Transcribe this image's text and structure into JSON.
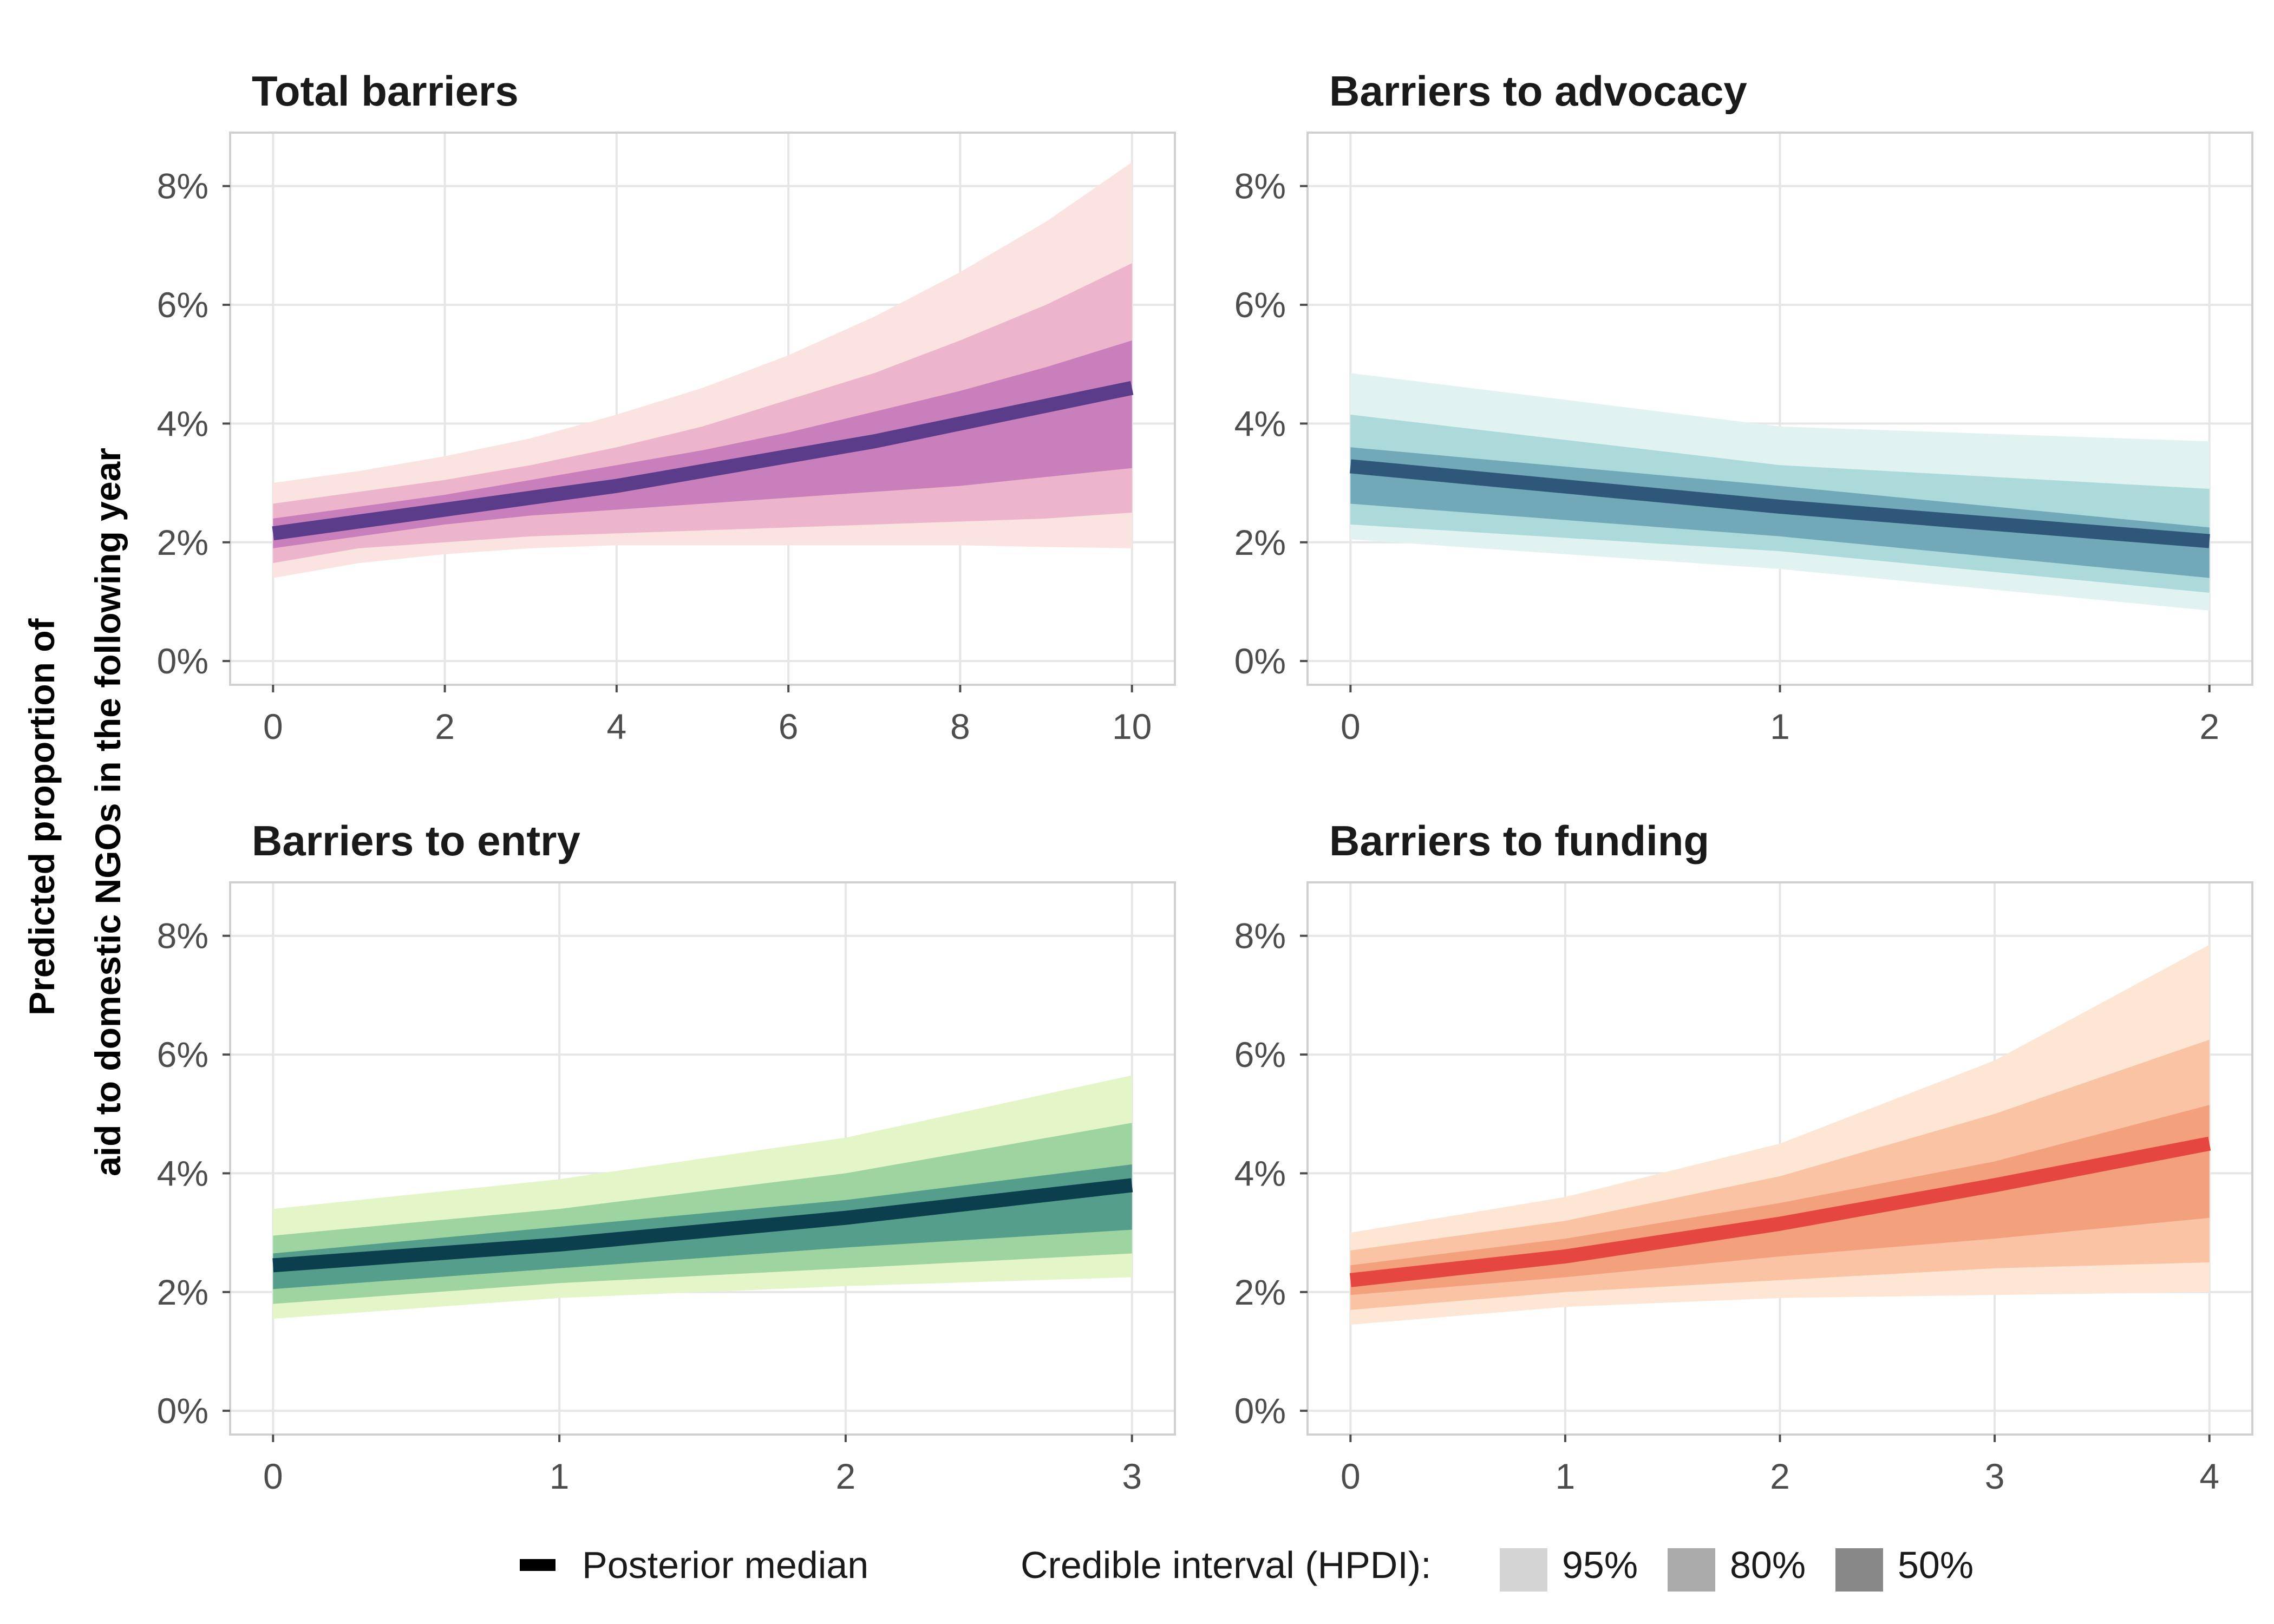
{
  "y_axis_title": [
    "Predicted proportion of",
    "aid to domestic NGOs in the following year"
  ],
  "legend": {
    "median_label": "Posterior median",
    "interval_label": "Credible interval (HPDI):",
    "levels": [
      "95%",
      "80%",
      "50%"
    ],
    "swatch_colors": [
      "#d4d4d4",
      "#ababab",
      "#888888"
    ],
    "median_color": "#000000"
  },
  "chart_data": [
    {
      "type": "line",
      "title": "Total barriers",
      "x": [
        0,
        1,
        2,
        3,
        4,
        5,
        6,
        7,
        8,
        9,
        10
      ],
      "x_ticks": [
        "0",
        "2",
        "4",
        "6",
        "8",
        "10"
      ],
      "x_tick_values": [
        0,
        2,
        4,
        6,
        8,
        10
      ],
      "xlim": [
        -0.5,
        10.5
      ],
      "y_ticks": [
        "0%",
        "2%",
        "4%",
        "6%",
        "8%"
      ],
      "y_tick_values": [
        0,
        2,
        4,
        6,
        8
      ],
      "ylim": [
        -0.4,
        8.9
      ],
      "grid": true,
      "colors": {
        "i95": "#fbe3e1",
        "i80": "#ecb5cb",
        "i50": "#c97fbb",
        "median": "#5a3c8a"
      },
      "median": [
        2.15,
        2.35,
        2.55,
        2.75,
        2.95,
        3.2,
        3.45,
        3.7,
        4.0,
        4.3,
        4.6
      ],
      "interval_95": {
        "lower": [
          1.4,
          1.65,
          1.8,
          1.9,
          1.95,
          1.95,
          1.95,
          1.95,
          1.95,
          1.92,
          1.9
        ],
        "upper": [
          3.0,
          3.2,
          3.45,
          3.75,
          4.15,
          4.6,
          5.15,
          5.8,
          6.55,
          7.4,
          8.4
        ]
      },
      "interval_80": {
        "lower": [
          1.65,
          1.9,
          2.0,
          2.1,
          2.15,
          2.2,
          2.25,
          2.3,
          2.35,
          2.4,
          2.5
        ],
        "upper": [
          2.65,
          2.85,
          3.05,
          3.3,
          3.6,
          3.95,
          4.4,
          4.85,
          5.4,
          6.0,
          6.7
        ]
      },
      "interval_50": {
        "lower": [
          1.9,
          2.1,
          2.3,
          2.45,
          2.55,
          2.65,
          2.75,
          2.85,
          2.95,
          3.1,
          3.25
        ],
        "upper": [
          2.4,
          2.6,
          2.8,
          3.05,
          3.3,
          3.55,
          3.85,
          4.2,
          4.55,
          4.95,
          5.4
        ]
      }
    },
    {
      "type": "line",
      "title": "Barriers to advocacy",
      "x": [
        0,
        1,
        2
      ],
      "x_ticks": [
        "0",
        "1",
        "2"
      ],
      "x_tick_values": [
        0,
        1,
        2
      ],
      "xlim": [
        -0.1,
        2.1
      ],
      "y_ticks": [
        "0%",
        "2%",
        "4%",
        "6%",
        "8%"
      ],
      "y_tick_values": [
        0,
        2,
        4,
        6,
        8
      ],
      "ylim": [
        -0.4,
        8.9
      ],
      "grid": true,
      "colors": {
        "i95": "#e0f3f1",
        "i80": "#acdadb",
        "i50": "#72a9b8",
        "median": "#2f5779"
      },
      "median": [
        3.28,
        2.6,
        2.02
      ],
      "interval_95": {
        "lower": [
          2.05,
          1.55,
          0.85
        ],
        "upper": [
          4.85,
          3.95,
          3.7
        ]
      },
      "interval_80": {
        "lower": [
          2.3,
          1.85,
          1.15
        ],
        "upper": [
          4.15,
          3.3,
          2.9
        ]
      },
      "interval_50": {
        "lower": [
          2.65,
          2.1,
          1.4
        ],
        "upper": [
          3.6,
          2.95,
          2.25
        ]
      }
    },
    {
      "type": "line",
      "title": "Barriers to entry",
      "x": [
        0,
        1,
        2,
        3
      ],
      "x_ticks": [
        "0",
        "1",
        "2",
        "3"
      ],
      "x_tick_values": [
        0,
        1,
        2,
        3
      ],
      "xlim": [
        -0.15,
        3.15
      ],
      "y_ticks": [
        "0%",
        "2%",
        "4%",
        "6%",
        "8%"
      ],
      "y_tick_values": [
        0,
        2,
        4,
        6,
        8
      ],
      "ylim": [
        -0.4,
        8.9
      ],
      "grid": true,
      "colors": {
        "i95": "#e4f5c8",
        "i80": "#9ed49f",
        "i50": "#559e8c",
        "median": "#0b3f4d"
      },
      "median": [
        2.45,
        2.8,
        3.25,
        3.8
      ],
      "interval_95": {
        "lower": [
          1.55,
          1.9,
          2.1,
          2.25
        ],
        "upper": [
          3.4,
          3.9,
          4.6,
          5.65
        ]
      },
      "interval_80": {
        "lower": [
          1.8,
          2.15,
          2.4,
          2.65
        ],
        "upper": [
          2.95,
          3.4,
          4.0,
          4.85
        ]
      },
      "interval_50": {
        "lower": [
          2.05,
          2.4,
          2.75,
          3.05
        ],
        "upper": [
          2.65,
          3.1,
          3.55,
          4.15
        ]
      }
    },
    {
      "type": "line",
      "title": "Barriers to funding",
      "x": [
        0,
        1,
        2,
        3,
        4
      ],
      "x_ticks": [
        "0",
        "1",
        "2",
        "3",
        "4"
      ],
      "x_tick_values": [
        0,
        1,
        2,
        3,
        4
      ],
      "xlim": [
        -0.2,
        4.2
      ],
      "y_ticks": [
        "0%",
        "2%",
        "4%",
        "6%",
        "8%"
      ],
      "y_tick_values": [
        0,
        2,
        4,
        6,
        8
      ],
      "ylim": [
        -0.4,
        8.9
      ],
      "grid": true,
      "colors": {
        "i95": "#fde6d4",
        "i80": "#f9c3a4",
        "i50": "#f3a07c",
        "median": "#e5463f"
      },
      "median": [
        2.2,
        2.6,
        3.15,
        3.8,
        4.5
      ],
      "interval_95": {
        "lower": [
          1.45,
          1.75,
          1.9,
          1.95,
          2.0
        ],
        "upper": [
          3.0,
          3.6,
          4.5,
          5.9,
          7.85
        ]
      },
      "interval_80": {
        "lower": [
          1.7,
          2.0,
          2.2,
          2.4,
          2.5
        ],
        "upper": [
          2.7,
          3.2,
          3.95,
          5.0,
          6.25
        ]
      },
      "interval_50": {
        "lower": [
          1.95,
          2.25,
          2.6,
          2.9,
          3.25
        ],
        "upper": [
          2.45,
          2.9,
          3.5,
          4.2,
          5.15
        ]
      }
    }
  ]
}
